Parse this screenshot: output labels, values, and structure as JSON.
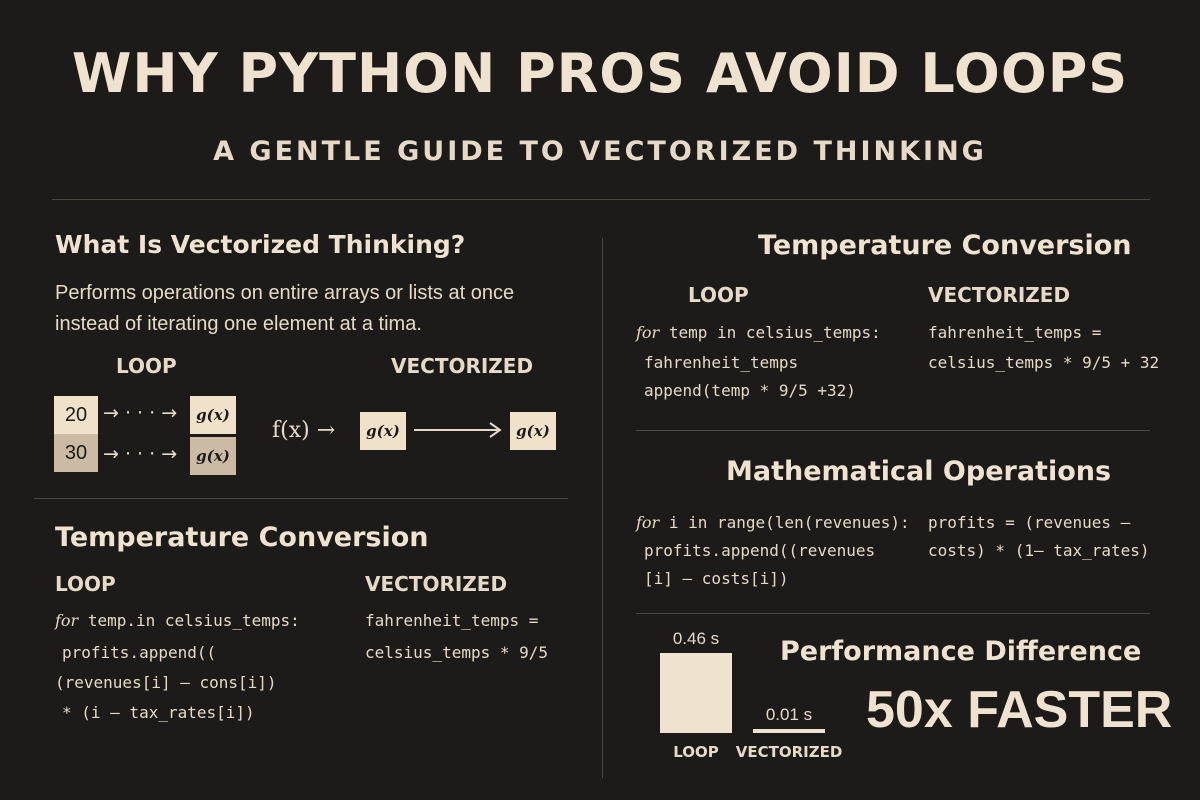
{
  "header": {
    "title": "WHY PYTHON PROS AVOID LOOPS",
    "subtitle": "A GENTLE GUIDE TO VECTORIZED THINKING"
  },
  "what_is": {
    "heading": "What Is Vectorized Thinking?",
    "description": "Performs operations on entire arrays or lists at once instead of iterating one element at a tima.",
    "loop_label": "LOOP",
    "vectorized_label": "VECTORIZED",
    "loop_values": [
      "20",
      "30"
    ],
    "arrow_text": "→ · · · →",
    "g_label": "g(x)",
    "f_label": "f(x) →"
  },
  "temp_left": {
    "heading": "Temperature Conversion",
    "loop_label": "LOOP",
    "vectorized_label": "VECTORIZED",
    "loop_keyword": "for",
    "loop_line1_rest": " temp.in celsius_temps:",
    "loop_line2": "profits.append((",
    "loop_line3": "(revenues[i] – cons[i])",
    "loop_line4": "* (i – tax_rates[i])",
    "vec_line1": "fahrenheit_temps =",
    "vec_line2": "celsius_temps * 9/5"
  },
  "temp_right": {
    "heading": "Temperature Conversion",
    "loop_label": "LOOP",
    "vectorized_label": "VECTORIZED",
    "loop_keyword": "for",
    "loop_line1_rest": " temp in celsius_temps:",
    "loop_line2": "fahrenheit_temps",
    "loop_line3": "append(temp * 9/5 +32)",
    "vec_line1": "fahrenheit_temps =",
    "vec_line2": "celsius_temps * 9/5 + 32"
  },
  "math_ops": {
    "heading": "Mathematical Operations",
    "loop_keyword": "for",
    "loop_line1_rest": " i in range(len(revenues):",
    "loop_line2": "profits.append((revenues",
    "loop_line3": "[i] – costs[i])",
    "vec_line1": "profits = (revenues –",
    "vec_line2": "costs) * (1– tax_rates)"
  },
  "performance": {
    "heading": "Performance Difference",
    "faster_text": "50x FASTER",
    "bar_color": "#efe3cf"
  },
  "chart_data": {
    "type": "bar",
    "categories": [
      "LOOP",
      "VECTORIZED"
    ],
    "values": [
      0.46,
      0.01
    ],
    "value_labels": [
      "0.46 s",
      "0.01 s"
    ]
  }
}
